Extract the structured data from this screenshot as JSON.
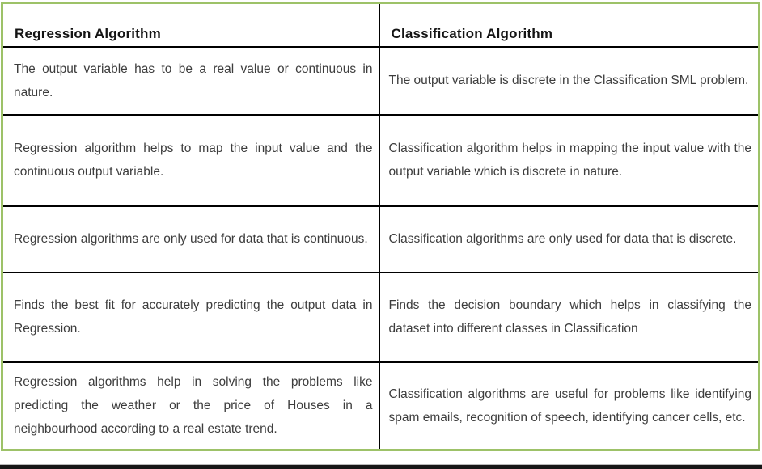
{
  "table": {
    "headers": {
      "left": "Regression Algorithm",
      "right": "Classification Algorithm"
    },
    "rows": [
      {
        "left": "The output variable has to be a real value or continuous in nature.",
        "right": "The output variable is discrete in the Classification SML problem."
      },
      {
        "left": "Regression algorithm helps to map the input value and the continuous output variable.",
        "right": "Classification algorithm helps in mapping the input value with the output variable which is discrete in nature."
      },
      {
        "left": "Regression algorithms are only used for data that is continuous.",
        "right": "Classification algorithms are only used for data that is discrete."
      },
      {
        "left": "Finds the best fit for accurately predicting the output data in Regression.",
        "right": "Finds the decision boundary which helps in classifying the dataset into different classes in Classification"
      },
      {
        "left": "Regression algorithms help in solving the problems like predicting the weather or the price of Houses in a neighbourhood according to a real estate trend.",
        "right": "Classification algorithms are useful for problems like identifying spam emails, recognition of speech, identifying cancer cells, etc."
      }
    ]
  },
  "colors": {
    "outer_border_green": "#9dc268",
    "grid_line_black": "#000000",
    "header_text": "#141414",
    "body_text": "#3d3d3d",
    "bottom_bar": "#161616"
  }
}
